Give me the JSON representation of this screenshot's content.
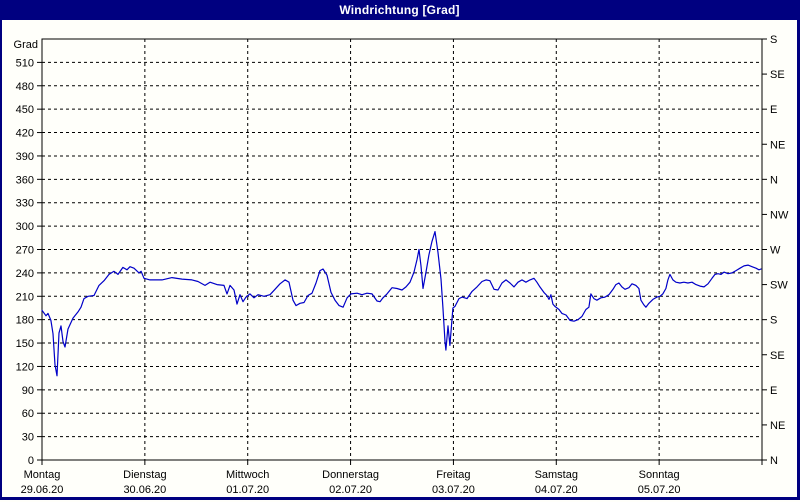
{
  "window": {
    "title": "Windrichtung [Grad]"
  },
  "colors": {
    "title_bar_bg": "#000080",
    "title_text": "#ffffff",
    "outer_border": "#000080",
    "plot_background": "#fffffa",
    "grid": "#000000",
    "axis": "#000000",
    "line": "#0000c8",
    "label_text": "#000000"
  },
  "chart_data": {
    "type": "line",
    "title": "Windrichtung [Grad]",
    "y_axis_left": {
      "label": "Grad",
      "min": 0,
      "max": 540,
      "tick_step": 30,
      "tick_labels": [
        "0",
        "30",
        "60",
        "90",
        "120",
        "150",
        "180",
        "210",
        "240",
        "270",
        "300",
        "330",
        "360",
        "390",
        "420",
        "450",
        "480",
        "510"
      ]
    },
    "y_axis_right": {
      "ticks": [
        {
          "value": 0,
          "label": "N"
        },
        {
          "value": 45,
          "label": "NE"
        },
        {
          "value": 90,
          "label": "E"
        },
        {
          "value": 135,
          "label": "SE"
        },
        {
          "value": 180,
          "label": "S"
        },
        {
          "value": 225,
          "label": "SW"
        },
        {
          "value": 270,
          "label": "W"
        },
        {
          "value": 315,
          "label": "NW"
        },
        {
          "value": 360,
          "label": "N"
        },
        {
          "value": 405,
          "label": "NE"
        },
        {
          "value": 450,
          "label": "E"
        },
        {
          "value": 495,
          "label": "SE"
        },
        {
          "value": 540,
          "label": "S"
        }
      ]
    },
    "x_axis": {
      "span_days": 7,
      "days": [
        {
          "name": "Montag",
          "date": "29.06.20"
        },
        {
          "name": "Dienstag",
          "date": "30.06.20"
        },
        {
          "name": "Mittwoch",
          "date": "01.07.20"
        },
        {
          "name": "Donnerstag",
          "date": "02.07.20"
        },
        {
          "name": "Freitag",
          "date": "03.07.20"
        },
        {
          "name": "Samstag",
          "date": "04.07.20"
        },
        {
          "name": "Sonntag",
          "date": "05.07.20"
        }
      ]
    },
    "grid": "dashed",
    "legend": "none",
    "series": [
      {
        "name": "Windrichtung",
        "unit": "Grad",
        "color": "#0000c8",
        "points": [
          [
            0.0,
            192
          ],
          [
            0.039,
            185
          ],
          [
            0.058,
            188
          ],
          [
            0.087,
            179
          ],
          [
            0.107,
            162
          ],
          [
            0.126,
            122
          ],
          [
            0.146,
            108
          ],
          [
            0.165,
            163
          ],
          [
            0.185,
            172
          ],
          [
            0.204,
            152
          ],
          [
            0.224,
            145
          ],
          [
            0.253,
            168
          ],
          [
            0.301,
            182
          ],
          [
            0.35,
            190
          ],
          [
            0.379,
            196
          ],
          [
            0.408,
            207
          ],
          [
            0.447,
            210
          ],
          [
            0.506,
            211
          ],
          [
            0.554,
            224
          ],
          [
            0.603,
            230
          ],
          [
            0.651,
            238
          ],
          [
            0.7,
            242
          ],
          [
            0.739,
            238
          ],
          [
            0.787,
            247
          ],
          [
            0.826,
            244
          ],
          [
            0.856,
            248
          ],
          [
            0.894,
            246
          ],
          [
            0.943,
            240
          ],
          [
            0.963,
            242
          ],
          [
            0.992,
            233
          ],
          [
            1.05,
            231
          ],
          [
            1.167,
            231
          ],
          [
            1.264,
            234
          ],
          [
            1.361,
            232
          ],
          [
            1.458,
            231
          ],
          [
            1.517,
            229
          ],
          [
            1.585,
            224
          ],
          [
            1.633,
            228
          ],
          [
            1.701,
            225
          ],
          [
            1.769,
            224
          ],
          [
            1.799,
            213
          ],
          [
            1.828,
            224
          ],
          [
            1.867,
            218
          ],
          [
            1.896,
            200
          ],
          [
            1.925,
            212
          ],
          [
            1.954,
            203
          ],
          [
            1.983,
            209
          ],
          [
            2.022,
            213
          ],
          [
            2.061,
            208
          ],
          [
            2.1,
            212
          ],
          [
            2.158,
            210
          ],
          [
            2.217,
            212
          ],
          [
            2.265,
            219
          ],
          [
            2.314,
            226
          ],
          [
            2.363,
            231
          ],
          [
            2.401,
            228
          ],
          [
            2.44,
            205
          ],
          [
            2.469,
            198
          ],
          [
            2.508,
            201
          ],
          [
            2.547,
            202
          ],
          [
            2.586,
            211
          ],
          [
            2.625,
            214
          ],
          [
            2.664,
            227
          ],
          [
            2.703,
            243
          ],
          [
            2.732,
            245
          ],
          [
            2.771,
            237
          ],
          [
            2.81,
            215
          ],
          [
            2.849,
            205
          ],
          [
            2.888,
            198
          ],
          [
            2.927,
            196
          ],
          [
            2.966,
            208
          ],
          [
            3.004,
            213
          ],
          [
            3.063,
            214
          ],
          [
            3.111,
            212
          ],
          [
            3.16,
            214
          ],
          [
            3.208,
            213
          ],
          [
            3.257,
            204
          ],
          [
            3.286,
            203
          ],
          [
            3.315,
            208
          ],
          [
            3.354,
            213
          ],
          [
            3.403,
            221
          ],
          [
            3.451,
            220
          ],
          [
            3.5,
            218
          ],
          [
            3.539,
            222
          ],
          [
            3.578,
            228
          ],
          [
            3.617,
            241
          ],
          [
            3.646,
            257
          ],
          [
            3.665,
            270
          ],
          [
            3.685,
            249
          ],
          [
            3.704,
            220
          ],
          [
            3.733,
            241
          ],
          [
            3.762,
            263
          ],
          [
            3.791,
            280
          ],
          [
            3.821,
            293
          ],
          [
            3.85,
            266
          ],
          [
            3.879,
            232
          ],
          [
            3.898,
            196
          ],
          [
            3.918,
            152
          ],
          [
            3.927,
            141
          ],
          [
            3.947,
            172
          ],
          [
            3.966,
            147
          ],
          [
            3.995,
            195
          ],
          [
            4.015,
            197
          ],
          [
            4.054,
            207
          ],
          [
            4.083,
            209
          ],
          [
            4.132,
            207
          ],
          [
            4.18,
            216
          ],
          [
            4.229,
            222
          ],
          [
            4.278,
            229
          ],
          [
            4.317,
            231
          ],
          [
            4.355,
            230
          ],
          [
            4.394,
            219
          ],
          [
            4.433,
            218
          ],
          [
            4.472,
            227
          ],
          [
            4.511,
            231
          ],
          [
            4.55,
            227
          ],
          [
            4.589,
            222
          ],
          [
            4.628,
            228
          ],
          [
            4.667,
            231
          ],
          [
            4.705,
            228
          ],
          [
            4.744,
            231
          ],
          [
            4.783,
            233
          ],
          [
            4.812,
            228
          ],
          [
            4.841,
            222
          ],
          [
            4.88,
            215
          ],
          [
            4.909,
            211
          ],
          [
            4.929,
            206
          ],
          [
            4.948,
            212
          ],
          [
            4.967,
            200
          ],
          [
            4.987,
            197
          ],
          [
            5.026,
            193
          ],
          [
            5.055,
            188
          ],
          [
            5.094,
            186
          ],
          [
            5.133,
            179
          ],
          [
            5.172,
            178
          ],
          [
            5.21,
            180
          ],
          [
            5.249,
            184
          ],
          [
            5.288,
            193
          ],
          [
            5.317,
            196
          ],
          [
            5.337,
            213
          ],
          [
            5.366,
            207
          ],
          [
            5.395,
            205
          ],
          [
            5.434,
            208
          ],
          [
            5.473,
            209
          ],
          [
            5.512,
            212
          ],
          [
            5.551,
            219
          ],
          [
            5.58,
            225
          ],
          [
            5.609,
            227
          ],
          [
            5.638,
            222
          ],
          [
            5.668,
            219
          ],
          [
            5.706,
            221
          ],
          [
            5.736,
            226
          ],
          [
            5.774,
            224
          ],
          [
            5.803,
            220
          ],
          [
            5.823,
            205
          ],
          [
            5.852,
            199
          ],
          [
            5.871,
            196
          ],
          [
            5.9,
            201
          ],
          [
            5.939,
            206
          ],
          [
            5.978,
            209
          ],
          [
            6.007,
            210
          ],
          [
            6.036,
            213
          ],
          [
            6.066,
            220
          ],
          [
            6.085,
            231
          ],
          [
            6.105,
            238
          ],
          [
            6.134,
            231
          ],
          [
            6.163,
            228
          ],
          [
            6.202,
            227
          ],
          [
            6.241,
            228
          ],
          [
            6.28,
            227
          ],
          [
            6.319,
            228
          ],
          [
            6.358,
            225
          ],
          [
            6.397,
            223
          ],
          [
            6.436,
            222
          ],
          [
            6.475,
            226
          ],
          [
            6.514,
            233
          ],
          [
            6.543,
            238
          ],
          [
            6.572,
            239
          ],
          [
            6.601,
            238
          ],
          [
            6.631,
            241
          ],
          [
            6.669,
            239
          ],
          [
            6.708,
            240
          ],
          [
            6.747,
            243
          ],
          [
            6.786,
            246
          ],
          [
            6.825,
            249
          ],
          [
            6.864,
            250
          ],
          [
            6.903,
            248
          ],
          [
            6.942,
            246
          ],
          [
            6.971,
            244
          ],
          [
            6.99,
            245
          ]
        ]
      }
    ]
  }
}
